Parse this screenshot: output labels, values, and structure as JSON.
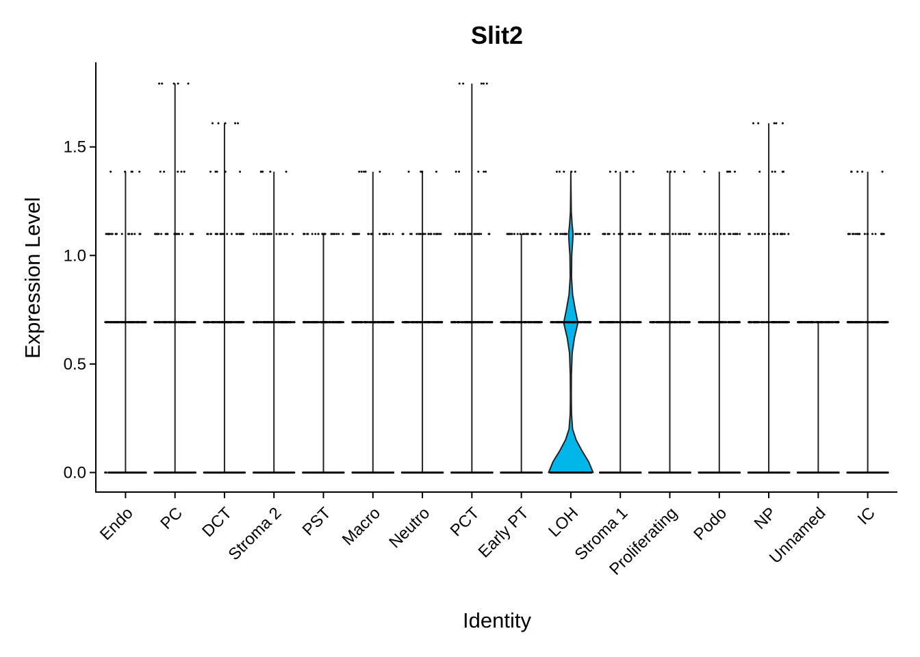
{
  "chart_data": {
    "type": "violin",
    "title": "Slit2",
    "xlabel": "Identity",
    "ylabel": "Expression Level",
    "ylim": [
      -0.09,
      1.89
    ],
    "yticks": [
      0.0,
      0.5,
      1.0,
      1.5
    ],
    "ytick_labels": [
      "0.0",
      "0.5",
      "1.0",
      "1.5"
    ],
    "grid": false,
    "legend": "none",
    "colors": {
      "highlight_fill": "#00B5EA",
      "other_fill": "#ffffff",
      "stroke": "#222222",
      "points": "#000000"
    },
    "categories": [
      "Endo",
      "PC",
      "DCT",
      "Stroma 2",
      "PST",
      "Macro",
      "Neutro",
      "PCT",
      "Early PT",
      "LOH",
      "Stroma 1",
      "Proliferating",
      "Podo",
      "NP",
      "Unnamed",
      "IC"
    ],
    "max_values": [
      1.386,
      1.792,
      1.609,
      1.386,
      1.099,
      1.386,
      1.386,
      1.792,
      1.099,
      1.386,
      1.386,
      1.386,
      1.386,
      1.609,
      0.693,
      1.386
    ],
    "point_levels": [
      [
        0,
        0.693,
        1.099,
        1.386
      ],
      [
        0,
        0.693,
        1.099,
        1.386,
        1.792
      ],
      [
        0,
        0.693,
        1.099,
        1.386,
        1.609
      ],
      [
        0,
        0.693,
        1.099,
        1.386
      ],
      [
        0,
        0.693,
        1.099
      ],
      [
        0,
        0.693,
        1.099,
        1.386
      ],
      [
        0,
        0.693,
        1.099,
        1.386
      ],
      [
        0,
        0.693,
        1.099,
        1.386,
        1.792
      ],
      [
        0,
        0.693,
        1.099
      ],
      [
        0,
        0.693,
        1.099,
        1.386
      ],
      [
        0,
        0.693,
        1.099,
        1.386
      ],
      [
        0,
        0.693,
        1.099,
        1.386
      ],
      [
        0,
        0.693,
        1.099,
        1.386
      ],
      [
        0,
        0.693,
        1.099,
        1.386,
        1.609
      ],
      [
        0,
        0.693
      ],
      [
        0,
        0.693,
        1.099,
        1.386
      ]
    ],
    "highlight": {
      "category": "LOH",
      "density": [
        [
          0.0,
          1.0
        ],
        [
          0.05,
          0.8
        ],
        [
          0.1,
          0.5
        ],
        [
          0.15,
          0.24
        ],
        [
          0.2,
          0.08
        ],
        [
          0.27,
          0.03
        ],
        [
          0.35,
          0.02
        ],
        [
          0.45,
          0.025
        ],
        [
          0.55,
          0.06
        ],
        [
          0.62,
          0.16
        ],
        [
          0.69,
          0.32
        ],
        [
          0.75,
          0.2
        ],
        [
          0.82,
          0.08
        ],
        [
          0.9,
          0.03
        ],
        [
          1.0,
          0.04
        ],
        [
          1.06,
          0.08
        ],
        [
          1.1,
          0.1
        ],
        [
          1.14,
          0.06
        ],
        [
          1.2,
          0.02
        ],
        [
          1.3,
          0.008
        ],
        [
          1.386,
          0.0
        ]
      ]
    }
  }
}
